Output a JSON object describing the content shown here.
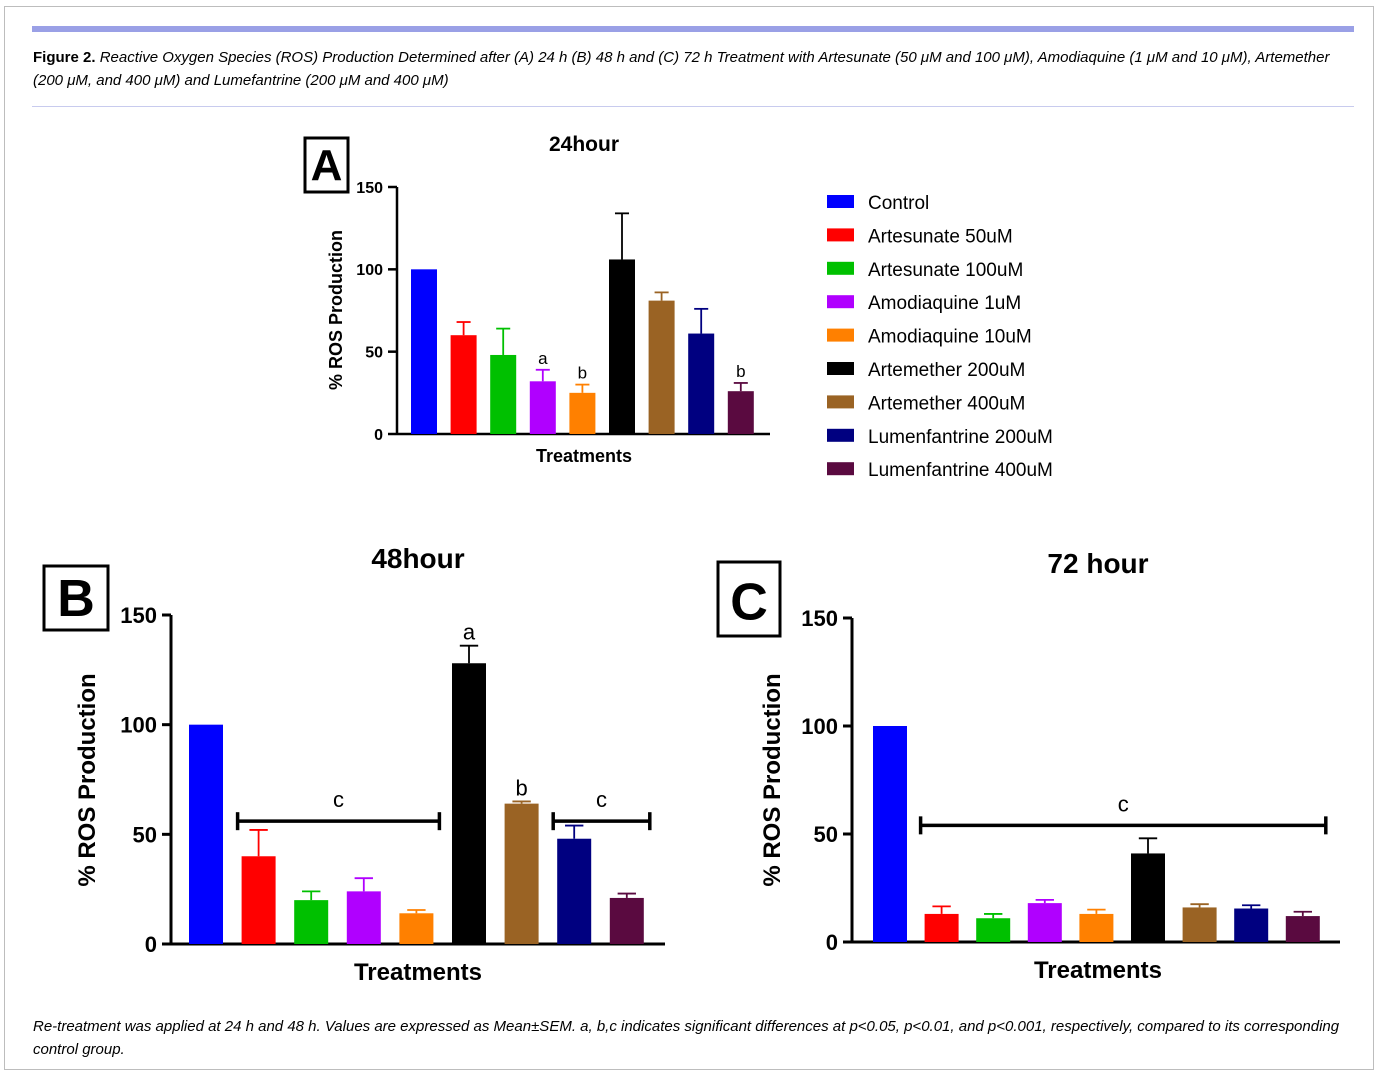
{
  "figure": {
    "caption_label": "Figure 2.",
    "caption_text": "Reactive Oxygen Species (ROS) Production Determined after (A) 24 h (B) 48 h and (C) 72 h Treatment with Artesunate (50 μM and 100 μM), Amodiaquine (1 μM and 10 μM), Artemether (200 μM, and 400 μM) and Lumefantrine (200 μM and 400 μM)",
    "footnote": "Re-treatment was applied at 24 h and 48 h. Values are expressed as Mean±SEM. a, b,c indicates significant differences at p<0.05, p<0.01, and p<0.001, respectively, compared to its corresponding control group."
  },
  "legend": {
    "entries": [
      "Control",
      "Artesunate 50uM",
      "Artesunate 100uM",
      "Amodiaquine 1uM",
      "Amodiaquine 10uM",
      "Artemether 200uM",
      "Artemether 400uM",
      "Lumenfantrine 200uM",
      "Lumenfantrine 400uM"
    ],
    "colors": [
      "#0000ff",
      "#ff0000",
      "#00c000",
      "#b000ff",
      "#ff8000",
      "#000000",
      "#9a6324",
      "#000080",
      "#5a0a40"
    ]
  },
  "chart_data": [
    {
      "type": "bar",
      "panel": "A",
      "title": "24hour",
      "xlabel": "Treatments",
      "ylabel": "% ROS Production",
      "ylim": [
        0,
        150
      ],
      "yticks": [
        0,
        50,
        100,
        150
      ],
      "categories": [
        "Control",
        "Artesunate 50uM",
        "Artesunate 100uM",
        "Amodiaquine 1uM",
        "Amodiaquine 10uM",
        "Artemether 200uM",
        "Artemether 400uM",
        "Lumenfantrine 200uM",
        "Lumenfantrine 400uM"
      ],
      "values": [
        100,
        60,
        48,
        32,
        25,
        106,
        81,
        61,
        26
      ],
      "errors": [
        0,
        8,
        16,
        7,
        5,
        28,
        5,
        15,
        5
      ],
      "significance": [
        {
          "label": "a",
          "bar": 3
        },
        {
          "label": "b",
          "bar": 4
        },
        {
          "label": "b",
          "bar": 8
        }
      ],
      "legend_position": "right"
    },
    {
      "type": "bar",
      "panel": "B",
      "title": "48hour",
      "xlabel": "Treatments",
      "ylabel": "% ROS Production",
      "ylim": [
        0,
        150
      ],
      "yticks": [
        0,
        50,
        100,
        150
      ],
      "categories": [
        "Control",
        "Artesunate 50uM",
        "Artesunate 100uM",
        "Amodiaquine 1uM",
        "Amodiaquine 10uM",
        "Artemether 200uM",
        "Artemether 400uM",
        "Lumenfantrine 200uM",
        "Lumenfantrine 400uM"
      ],
      "values": [
        100,
        40,
        20,
        24,
        14,
        128,
        64,
        48,
        21
      ],
      "errors": [
        0,
        12,
        4,
        6,
        1.5,
        8,
        1,
        6,
        2
      ],
      "significance": [
        {
          "label": "a",
          "bar": 5
        },
        {
          "label": "b",
          "bar": 6
        }
      ],
      "brackets": [
        {
          "label": "c",
          "from_bar": 1,
          "to_bar": 4,
          "y": 56
        },
        {
          "label": "c",
          "from_bar": 7,
          "to_bar": 8,
          "y": 56
        }
      ]
    },
    {
      "type": "bar",
      "panel": "C",
      "title": "72 hour",
      "xlabel": "Treatments",
      "ylabel": "% ROS Production",
      "ylim": [
        0,
        150
      ],
      "yticks": [
        0,
        50,
        100,
        150
      ],
      "categories": [
        "Control",
        "Artesunate 50uM",
        "Artesunate 100uM",
        "Amodiaquine 1uM",
        "Amodiaquine 10uM",
        "Artemether 200uM",
        "Artemether 400uM",
        "Lumenfantrine 200uM",
        "Lumenfantrine 400uM"
      ],
      "values": [
        100,
        13,
        11,
        18,
        13,
        41,
        16,
        15.5,
        12
      ],
      "errors": [
        0,
        3.5,
        2,
        1.5,
        2,
        7,
        1.5,
        1.5,
        2
      ],
      "brackets": [
        {
          "label": "c",
          "from_bar": 1,
          "to_bar": 8,
          "y": 54
        }
      ]
    }
  ]
}
